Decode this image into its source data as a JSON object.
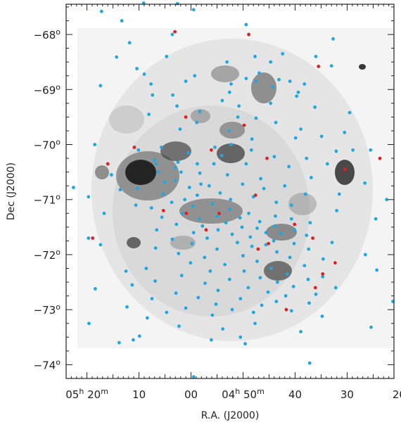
{
  "chart_data": {
    "type": "scatter",
    "title": "",
    "xlabel": "R.A. (J2000)",
    "ylabel": "Dec (J2000)",
    "background": "grayscale HI column-density map of the Large Magellanic Cloud",
    "xlim_ra_min": [
      324,
      261
    ],
    "ylim_deg": [
      -74.25,
      -67.45
    ],
    "x_tick_labels": [
      {
        "ra_min": 320,
        "parts": [
          {
            "t": "05"
          },
          {
            "t": "h",
            "sup": true
          },
          {
            "t": " 20"
          },
          {
            "t": "m",
            "sup": true
          }
        ]
      },
      {
        "ra_min": 310,
        "parts": [
          {
            "t": "10"
          }
        ]
      },
      {
        "ra_min": 300,
        "parts": [
          {
            "t": "00"
          }
        ]
      },
      {
        "ra_min": 290,
        "parts": [
          {
            "t": "04"
          },
          {
            "t": "h",
            "sup": true
          },
          {
            "t": " 50"
          },
          {
            "t": "m",
            "sup": true
          }
        ]
      },
      {
        "ra_min": 280,
        "parts": [
          {
            "t": "40"
          }
        ]
      },
      {
        "ra_min": 270,
        "parts": [
          {
            "t": "30"
          }
        ]
      },
      {
        "ra_min": 260,
        "parts": [
          {
            "t": "20"
          }
        ]
      }
    ],
    "y_tick_labels": [
      {
        "dec": -68,
        "label": "−68",
        "unit": "o"
      },
      {
        "dec": -69,
        "label": "−69",
        "unit": "o"
      },
      {
        "dec": -70,
        "label": "−70",
        "unit": "o"
      },
      {
        "dec": -71,
        "label": "−71",
        "unit": "o"
      },
      {
        "dec": -72,
        "label": "−72",
        "unit": "o"
      },
      {
        "dec": -73,
        "label": "−73",
        "unit": "o"
      },
      {
        "dec": -74,
        "label": "−74",
        "unit": "o"
      }
    ],
    "series": [
      {
        "color": "#1ea7e1",
        "points": [
          [
            317.2,
            -67.58
          ],
          [
            309.1,
            -67.43
          ],
          [
            302.6,
            -67.44
          ],
          [
            299.5,
            -67.55
          ],
          [
            313.3,
            -67.75
          ],
          [
            289.4,
            -67.82
          ],
          [
            303.6,
            -68.0
          ],
          [
            272.7,
            -68.08
          ],
          [
            256.5,
            -68.15
          ],
          [
            311.8,
            -68.15
          ],
          [
            282.4,
            -68.35
          ],
          [
            304.7,
            -68.4
          ],
          [
            314.3,
            -68.41
          ],
          [
            287.7,
            -68.4
          ],
          [
            276.0,
            -68.4
          ],
          [
            284.7,
            -68.5
          ],
          [
            293.1,
            -68.5
          ],
          [
            273.0,
            -68.57
          ],
          [
            310.4,
            -68.62
          ],
          [
            309.0,
            -68.72
          ],
          [
            286.9,
            -68.7
          ],
          [
            299.3,
            -68.75
          ],
          [
            289.4,
            -68.8
          ],
          [
            283.1,
            -68.82
          ],
          [
            287.5,
            -68.85
          ],
          [
            281.0,
            -68.85
          ],
          [
            301.0,
            -68.85
          ],
          [
            292.3,
            -68.9
          ],
          [
            307.7,
            -68.9
          ],
          [
            317.4,
            -68.93
          ],
          [
            284.3,
            -68.95
          ],
          [
            278.2,
            -68.9
          ],
          [
            292.6,
            -69.05
          ],
          [
            279.4,
            -69.05
          ],
          [
            303.5,
            -69.1
          ],
          [
            307.4,
            -69.1
          ],
          [
            279.7,
            -69.12
          ],
          [
            294.0,
            -69.2
          ],
          [
            284.7,
            -69.25
          ],
          [
            302.7,
            -69.3
          ],
          [
            290.8,
            -69.3
          ],
          [
            276.2,
            -69.32
          ],
          [
            298.3,
            -69.4
          ],
          [
            269.5,
            -69.42
          ],
          [
            260.7,
            -69.42
          ],
          [
            308.1,
            -69.45
          ],
          [
            291.0,
            -69.5
          ],
          [
            287.5,
            -69.52
          ],
          [
            298.9,
            -69.6
          ],
          [
            283.7,
            -69.6
          ],
          [
            302.1,
            -69.72
          ],
          [
            278.9,
            -69.72
          ],
          [
            292.7,
            -69.75
          ],
          [
            270.5,
            -69.78
          ],
          [
            274.9,
            -69.85
          ],
          [
            288.3,
            -69.9
          ],
          [
            279.9,
            -69.88
          ],
          [
            292.3,
            -70.0
          ],
          [
            318.5,
            -70.0
          ],
          [
            305.7,
            -70.05
          ],
          [
            295.4,
            -70.05
          ],
          [
            310.1,
            -70.1
          ],
          [
            265.5,
            -70.1
          ],
          [
            288.4,
            -70.1
          ],
          [
            272.1,
            -70.12
          ],
          [
            268.9,
            -70.1
          ],
          [
            300.5,
            -70.15
          ],
          [
            294.1,
            -70.2
          ],
          [
            284.0,
            -70.22
          ],
          [
            277.8,
            -70.25
          ],
          [
            259.0,
            -70.25
          ],
          [
            307.0,
            -70.28
          ],
          [
            302.5,
            -70.32
          ],
          [
            306.7,
            -70.35
          ],
          [
            298.8,
            -70.35
          ],
          [
            295.6,
            -70.35
          ],
          [
            289.4,
            -70.35
          ],
          [
            273.8,
            -70.35
          ],
          [
            303.0,
            -70.42
          ],
          [
            281.2,
            -70.4
          ],
          [
            301.9,
            -70.5
          ],
          [
            306.3,
            -70.5
          ],
          [
            298.3,
            -70.52
          ],
          [
            293.0,
            -70.55
          ],
          [
            315.3,
            -70.55
          ],
          [
            276.9,
            -70.6
          ],
          [
            286.6,
            -70.62
          ],
          [
            303.0,
            -70.65
          ],
          [
            305.0,
            -70.68
          ],
          [
            298.1,
            -70.72
          ],
          [
            296.5,
            -70.75
          ],
          [
            290.1,
            -70.72
          ],
          [
            266.6,
            -70.7
          ],
          [
            282.0,
            -70.75
          ],
          [
            300.3,
            -70.78
          ],
          [
            322.6,
            -70.78
          ],
          [
            310.3,
            -70.8
          ],
          [
            286.0,
            -70.8
          ],
          [
            313.6,
            -70.82
          ],
          [
            257.9,
            -70.82
          ],
          [
            305.3,
            -70.9
          ],
          [
            294.4,
            -70.88
          ],
          [
            271.5,
            -70.9
          ],
          [
            278.0,
            -70.9
          ],
          [
            298.8,
            -70.92
          ],
          [
            288.0,
            -70.95
          ],
          [
            319.7,
            -70.95
          ],
          [
            301.2,
            -71.0
          ],
          [
            292.4,
            -71.0
          ],
          [
            262.4,
            -71.0
          ],
          [
            303.7,
            -71.05
          ],
          [
            283.6,
            -71.05
          ],
          [
            295.9,
            -71.08
          ],
          [
            310.6,
            -71.1
          ],
          [
            280.7,
            -71.1
          ],
          [
            299.6,
            -71.12
          ],
          [
            307.6,
            -71.15
          ],
          [
            292.5,
            -71.18
          ],
          [
            272.0,
            -71.2
          ],
          [
            301.6,
            -71.25
          ],
          [
            288.9,
            -71.25
          ],
          [
            316.7,
            -71.25
          ],
          [
            295.0,
            -71.3
          ],
          [
            283.8,
            -71.3
          ],
          [
            305.6,
            -71.32
          ],
          [
            290.6,
            -71.33
          ],
          [
            298.4,
            -71.35
          ],
          [
            280.7,
            -71.35
          ],
          [
            264.5,
            -71.35
          ],
          [
            286.8,
            -71.4
          ],
          [
            293.3,
            -71.42
          ],
          [
            277.1,
            -71.42
          ],
          [
            302.8,
            -71.45
          ],
          [
            297.8,
            -71.48
          ],
          [
            283.9,
            -71.48
          ],
          [
            290.2,
            -71.5
          ],
          [
            287.3,
            -71.52
          ],
          [
            280.1,
            -71.55
          ],
          [
            294.8,
            -71.55
          ],
          [
            306.6,
            -71.55
          ],
          [
            324.3,
            -71.55
          ],
          [
            299.5,
            -71.6
          ],
          [
            285.6,
            -71.6
          ],
          [
            282.7,
            -71.62
          ],
          [
            292.1,
            -71.63
          ],
          [
            277.8,
            -71.65
          ],
          [
            288.6,
            -71.68
          ],
          [
            296.9,
            -71.7
          ],
          [
            319.7,
            -71.7
          ],
          [
            303.6,
            -71.72
          ],
          [
            284.1,
            -71.75
          ],
          [
            291.1,
            -71.78
          ],
          [
            272.9,
            -71.78
          ],
          [
            280.2,
            -71.8
          ],
          [
            299.8,
            -71.8
          ],
          [
            285.6,
            -71.82
          ],
          [
            317.4,
            -71.82
          ],
          [
            288.3,
            -71.85
          ],
          [
            306.8,
            -71.88
          ],
          [
            295.0,
            -71.9
          ],
          [
            277.4,
            -71.9
          ],
          [
            283.5,
            -71.95
          ],
          [
            302.4,
            -71.98
          ],
          [
            266.5,
            -72.0
          ],
          [
            290.0,
            -72.02
          ],
          [
            297.4,
            -72.05
          ],
          [
            281.0,
            -72.05
          ],
          [
            274.6,
            -72.08
          ],
          [
            287.3,
            -72.12
          ],
          [
            300.1,
            -72.15
          ],
          [
            293.5,
            -72.18
          ],
          [
            278.2,
            -72.2
          ],
          [
            284.6,
            -72.25
          ],
          [
            308.6,
            -72.25
          ],
          [
            264.3,
            -72.28
          ],
          [
            289.8,
            -72.3
          ],
          [
            296.3,
            -72.3
          ],
          [
            312.5,
            -72.3
          ],
          [
            281.5,
            -72.35
          ],
          [
            301.8,
            -72.38
          ],
          [
            274.7,
            -72.4
          ],
          [
            286.7,
            -72.42
          ],
          [
            292.6,
            -72.45
          ],
          [
            277.5,
            -72.45
          ],
          [
            306.9,
            -72.48
          ],
          [
            283.4,
            -72.5
          ],
          [
            297.3,
            -72.52
          ],
          [
            311.3,
            -72.55
          ],
          [
            280.3,
            -72.58
          ],
          [
            289.0,
            -72.6
          ],
          [
            272.2,
            -72.6
          ],
          [
            318.4,
            -72.62
          ],
          [
            294.8,
            -72.65
          ],
          [
            285.2,
            -72.68
          ],
          [
            302.9,
            -72.7
          ],
          [
            276.0,
            -72.72
          ],
          [
            281.8,
            -72.75
          ],
          [
            298.6,
            -72.78
          ],
          [
            290.5,
            -72.8
          ],
          [
            307.5,
            -72.8
          ],
          [
            283.6,
            -72.85
          ],
          [
            261.2,
            -72.85
          ],
          [
            277.3,
            -72.88
          ],
          [
            295.2,
            -72.9
          ],
          [
            286.4,
            -72.92
          ],
          [
            312.3,
            -72.95
          ],
          [
            301.0,
            -72.97
          ],
          [
            292.1,
            -73.0
          ],
          [
            280.7,
            -73.02
          ],
          [
            304.7,
            -73.05
          ],
          [
            288.0,
            -73.05
          ],
          [
            295.9,
            -73.1
          ],
          [
            274.8,
            -73.12
          ],
          [
            308.4,
            -73.15
          ],
          [
            319.6,
            -73.25
          ],
          [
            287.7,
            -73.25
          ],
          [
            302.3,
            -73.3
          ],
          [
            265.4,
            -73.32
          ],
          [
            293.9,
            -73.35
          ],
          [
            278.9,
            -73.4
          ],
          [
            309.9,
            -73.48
          ],
          [
            290.5,
            -73.5
          ],
          [
            296.1,
            -73.55
          ],
          [
            311.1,
            -73.55
          ],
          [
            313.8,
            -73.6
          ],
          [
            289.6,
            -73.62
          ],
          [
            277.2,
            -73.97
          ],
          [
            299.5,
            -74.22
          ]
        ]
      },
      {
        "color": "#e02020",
        "points": [
          [
            303.1,
            -67.95
          ],
          [
            288.9,
            -68.0
          ],
          [
            275.5,
            -68.58
          ],
          [
            301.0,
            -69.5
          ],
          [
            289.8,
            -69.65
          ],
          [
            310.9,
            -70.05
          ],
          [
            296.1,
            -70.1
          ],
          [
            285.4,
            -70.25
          ],
          [
            263.7,
            -70.25
          ],
          [
            270.4,
            -70.45
          ],
          [
            316.0,
            -70.35
          ],
          [
            287.6,
            -70.92
          ],
          [
            300.9,
            -71.25
          ],
          [
            294.6,
            -71.25
          ],
          [
            305.3,
            -71.2
          ],
          [
            280.1,
            -71.45
          ],
          [
            297.1,
            -71.55
          ],
          [
            318.9,
            -71.7
          ],
          [
            276.6,
            -71.7
          ],
          [
            285.1,
            -71.8
          ],
          [
            287.1,
            -71.9
          ],
          [
            272.3,
            -72.15
          ],
          [
            274.7,
            -72.35
          ],
          [
            276.1,
            -72.6
          ],
          [
            281.7,
            -73.0
          ]
        ]
      }
    ],
    "legend": "none",
    "grid": false
  }
}
